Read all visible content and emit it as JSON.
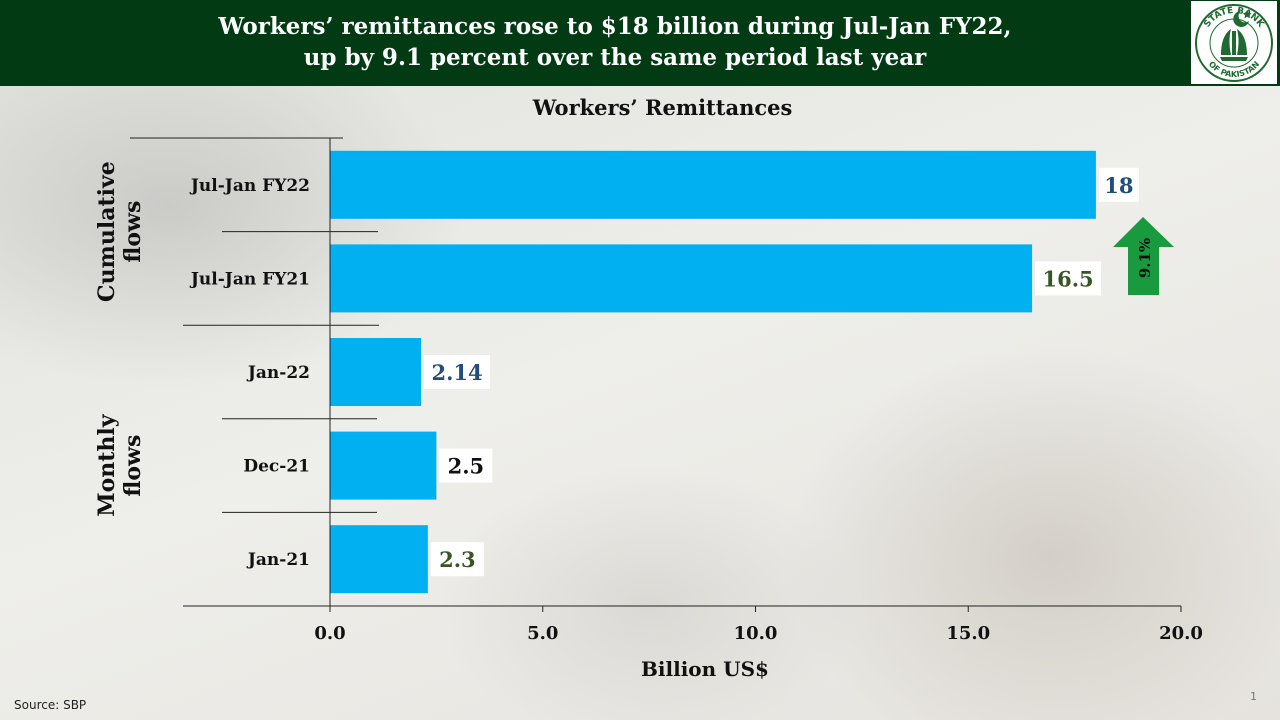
{
  "header": {
    "title_line1": "Workers’ remittances rose to $18 billion during Jul-Jan FY22,",
    "title_line2": "up by 9.1 percent over the same period last year",
    "logo_text_top": "STATE BANK",
    "logo_text_bottom": "OF PAKISTAN"
  },
  "colors": {
    "header_bg": "#013a13",
    "bar": "#00b0f0",
    "label_blue": "#1f4e79",
    "label_green": "#375623",
    "arrow": "#1a9a3e"
  },
  "chart_data": {
    "type": "bar",
    "orientation": "horizontal",
    "title": "Workers’ Remittances",
    "xlabel": "Billion US$",
    "xlim": [
      0,
      20
    ],
    "ticks": [
      "0.0",
      "5.0",
      "10.0",
      "15.0",
      "20.0"
    ],
    "tick_values": [
      0,
      5,
      10,
      15,
      20
    ],
    "groups": [
      {
        "name": "Cumulative flows",
        "name_line1": "Cumulative",
        "name_line2": "flows",
        "categories": [
          "Jul-Jan FY22",
          "Jul-Jan FY21"
        ]
      },
      {
        "name": "Monthly flows",
        "name_line1": "Monthly",
        "name_line2": "flows",
        "categories": [
          "Jan-22",
          "Dec-21",
          "Jan-21"
        ]
      }
    ],
    "categories": [
      "Jul-Jan FY22",
      "Jul-Jan FY21",
      "Jan-22",
      "Dec-21",
      "Jan-21"
    ],
    "values": [
      18,
      16.5,
      2.14,
      2.5,
      2.3
    ],
    "labels": [
      "18",
      "16.5",
      "2.14",
      "2.5",
      "2.3"
    ],
    "label_colors": [
      "#1f4e79",
      "#375623",
      "#1f4e79",
      "#111111",
      "#375623"
    ],
    "annotation": {
      "text": "9.1%",
      "direction": "up"
    }
  },
  "footer": {
    "source": "Source: SBP",
    "slide_number": "1"
  }
}
